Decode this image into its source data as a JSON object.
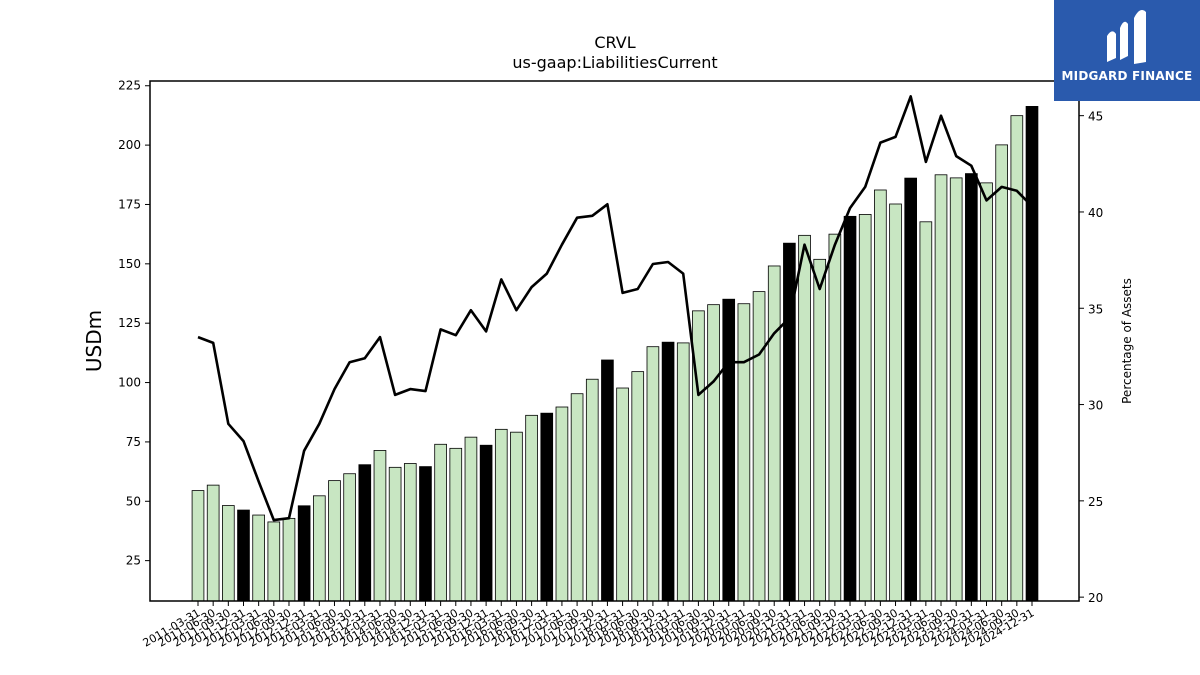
{
  "chart_data": {
    "type": "bar",
    "title": "CRVL",
    "subtitle": "us-gaap:LiabilitiesCurrent",
    "ylabel": "USDm",
    "y2label": "Percentage of Assets",
    "ylim": [
      8,
      227
    ],
    "y2lim": [
      19.8,
      46.8
    ],
    "yticks": [
      25,
      50,
      75,
      100,
      125,
      150,
      175,
      200,
      225
    ],
    "y2ticks": [
      20,
      25,
      30,
      35,
      40,
      45
    ],
    "grid": false,
    "colors": {
      "bar_default": "#c8e6c2",
      "bar_highlight": "#000000",
      "line": "#000000"
    },
    "categories": [
      "2011-03-31",
      "2011-06-30",
      "2011-09-30",
      "2011-12-31",
      "2012-03-31",
      "2012-06-30",
      "2012-09-30",
      "2012-12-31",
      "2013-03-31",
      "2013-06-30",
      "2013-09-30",
      "2013-12-31",
      "2014-03-31",
      "2014-06-30",
      "2014-09-30",
      "2014-12-31",
      "2015-03-31",
      "2015-06-30",
      "2015-09-30",
      "2015-12-31",
      "2016-03-31",
      "2016-06-30",
      "2016-09-30",
      "2016-12-31",
      "2017-03-31",
      "2017-06-30",
      "2017-09-30",
      "2017-12-31",
      "2018-03-31",
      "2018-06-30",
      "2018-09-30",
      "2018-12-31",
      "2019-03-31",
      "2019-06-30",
      "2019-09-30",
      "2019-12-31",
      "2020-03-31",
      "2020-06-30",
      "2020-09-30",
      "2020-12-31",
      "2021-03-31",
      "2021-06-30",
      "2021-09-30",
      "2021-12-31",
      "2022-03-31",
      "2022-06-30",
      "2022-09-30",
      "2022-12-31",
      "2023-03-31",
      "2023-06-30",
      "2023-09-30",
      "2023-12-31",
      "2024-03-31",
      "2024-06-30",
      "2024-09-30",
      "2024-12-31"
    ],
    "series": [
      {
        "type": "bar",
        "values": [
          54.5,
          56.8,
          48.2,
          46.3,
          44.2,
          41.3,
          42.8,
          48.1,
          52.3,
          58.7,
          61.6,
          65.4,
          71.4,
          64.3,
          65.9,
          64.6,
          74.0,
          72.3,
          77.0,
          73.6,
          80.3,
          79.1,
          86.2,
          87.1,
          89.7,
          95.3,
          101.4,
          109.5,
          97.7,
          104.6,
          115.1,
          117.0,
          116.7,
          130.2,
          132.8,
          135.1,
          133.2,
          138.3,
          149.1,
          158.7,
          162.0,
          151.9,
          162.5,
          170.0,
          170.8,
          181.1,
          175.2,
          186.1,
          167.7,
          187.5,
          186.2,
          188.0,
          184.1,
          200.1,
          212.4,
          216.3
        ],
        "highlight": [
          false,
          false,
          false,
          true,
          false,
          false,
          false,
          true,
          false,
          false,
          false,
          true,
          false,
          false,
          false,
          true,
          false,
          false,
          false,
          true,
          false,
          false,
          false,
          true,
          false,
          false,
          false,
          true,
          false,
          false,
          false,
          true,
          false,
          false,
          false,
          true,
          false,
          false,
          false,
          true,
          false,
          false,
          false,
          true,
          false,
          false,
          false,
          true,
          false,
          false,
          false,
          true,
          false,
          false,
          false,
          true
        ]
      },
      {
        "type": "line",
        "axis": "right",
        "values": [
          33.5,
          33.2,
          29.0,
          28.1,
          26.0,
          24.0,
          24.1,
          27.6,
          29.0,
          30.8,
          32.2,
          32.4,
          33.5,
          30.5,
          30.8,
          30.7,
          33.9,
          33.6,
          34.9,
          33.8,
          36.5,
          34.9,
          36.1,
          36.8,
          38.3,
          39.7,
          39.8,
          40.4,
          35.8,
          36.0,
          37.3,
          37.4,
          36.8,
          30.5,
          31.2,
          32.2,
          32.2,
          32.6,
          33.7,
          34.5,
          38.3,
          36.0,
          38.3,
          40.2,
          41.3,
          43.6,
          43.9,
          46.0,
          42.6,
          45.0,
          42.9,
          42.4,
          40.6,
          41.3,
          41.1,
          40.3
        ]
      }
    ]
  },
  "logo": {
    "text": "MIDGARD FINANCE"
  }
}
